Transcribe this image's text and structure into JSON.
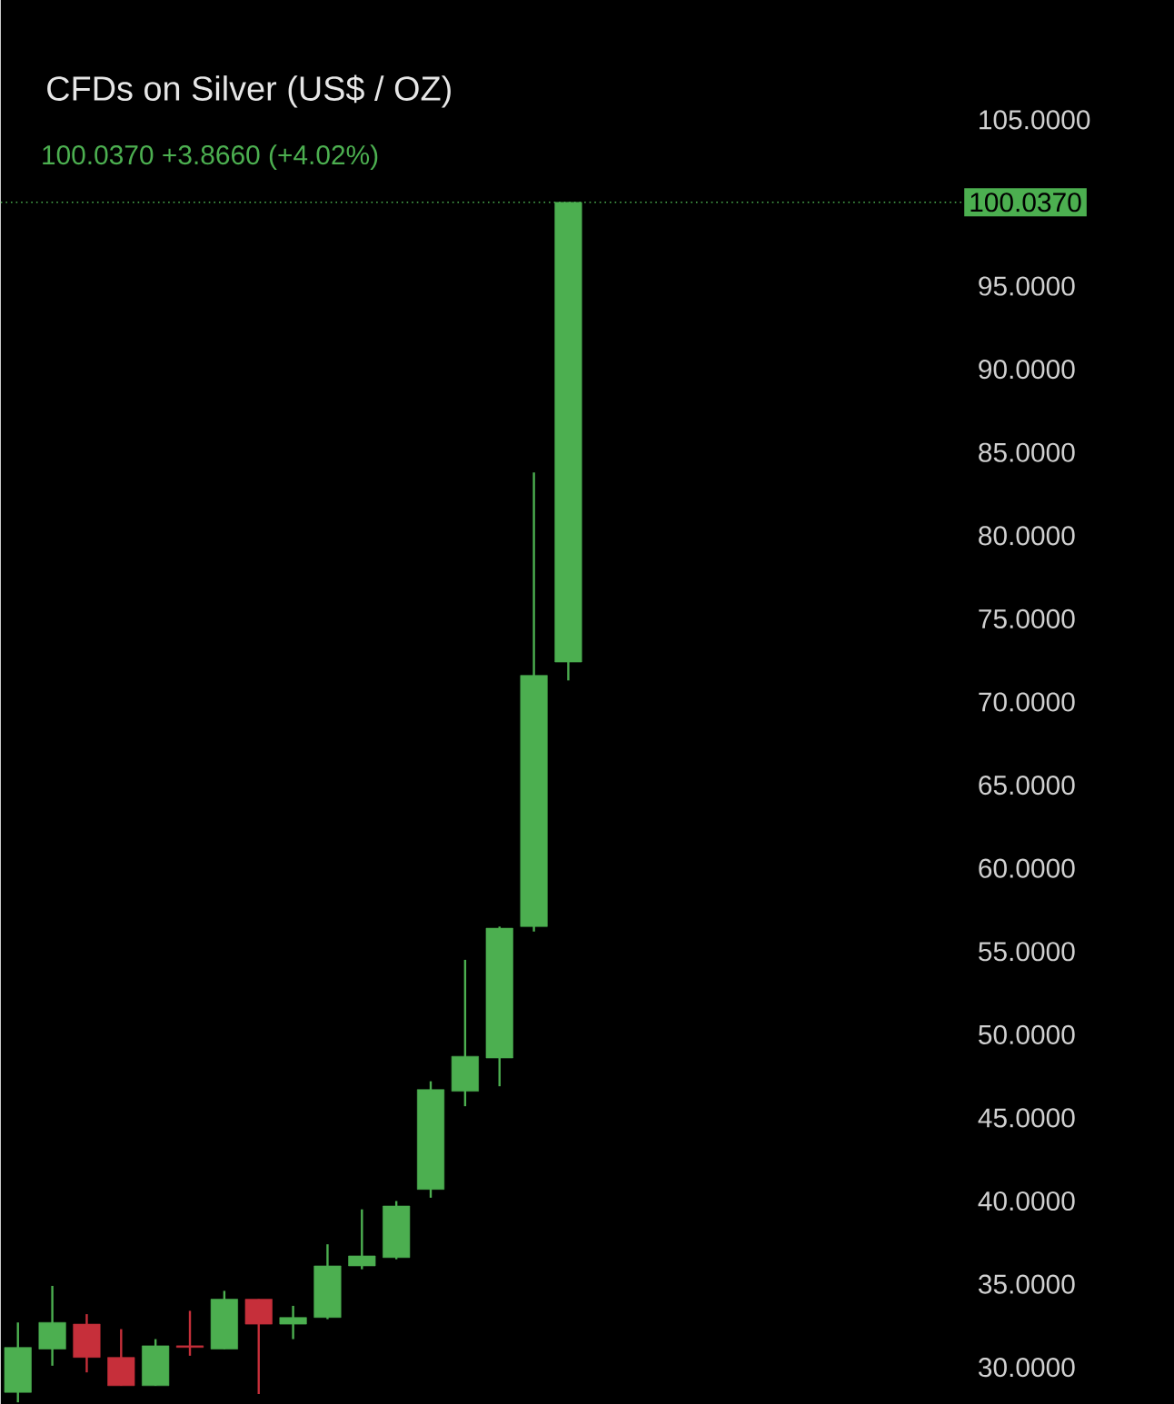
{
  "chart_data": {
    "type": "candlestick",
    "title": "CFDs on Silver (US$ / OZ)",
    "subtitle": "100.0370 +3.8660 (+4.02%)",
    "categories": [
      null,
      null,
      null,
      null,
      null,
      null,
      null,
      null,
      null,
      null,
      null,
      null,
      null,
      null,
      null,
      null,
      null,
      null,
      null,
      null,
      null,
      null,
      null,
      null,
      null,
      null,
      null,
      null
    ],
    "ohlc": [
      [
        28.5,
        32.7,
        27.9,
        31.2
      ],
      [
        31.1,
        34.9,
        30.1,
        32.7
      ],
      [
        32.6,
        33.2,
        29.7,
        30.6
      ],
      [
        30.6,
        32.3,
        28.9,
        28.9
      ],
      [
        28.9,
        31.7,
        28.9,
        31.3
      ],
      [
        31.3,
        33.4,
        30.7,
        31.2
      ],
      [
        31.1,
        34.6,
        31.1,
        34.1
      ],
      [
        34.1,
        34.1,
        28.4,
        32.6
      ],
      [
        32.6,
        33.7,
        31.7,
        33.0
      ],
      [
        33.0,
        37.4,
        32.9,
        36.1
      ],
      [
        36.1,
        39.5,
        35.9,
        36.7
      ],
      [
        36.6,
        40.0,
        36.5,
        39.7
      ],
      [
        40.7,
        47.2,
        40.2,
        46.7
      ],
      [
        46.6,
        54.5,
        45.7,
        48.7
      ],
      [
        48.6,
        56.5,
        46.9,
        56.4
      ],
      [
        56.5,
        83.8,
        56.2,
        71.6
      ],
      [
        72.4,
        100.037,
        71.3,
        100.037
      ],
      null,
      null,
      null,
      null,
      null,
      null,
      null,
      null,
      null,
      null,
      null
    ],
    "colors": [
      "#4caf50",
      "#4caf50",
      "#c62f3a",
      "#c62f3a",
      "#4caf50",
      "#c62f3a",
      "#4caf50",
      "#c62f3a",
      "#4caf50",
      "#4caf50",
      "#4caf50",
      "#4caf50",
      "#4caf50",
      "#4caf50",
      "#4caf50",
      "#4caf50",
      "#4caf50",
      null,
      null,
      null,
      null,
      null,
      null,
      null,
      null,
      null,
      null,
      null
    ],
    "ylim": [
      27.8,
      112.2
    ],
    "yticks": [
      {
        "value": 30,
        "label": "30.0000"
      },
      {
        "value": 35,
        "label": "35.0000"
      },
      {
        "value": 40,
        "label": "40.0000"
      },
      {
        "value": 45,
        "label": "45.0000"
      },
      {
        "value": 50,
        "label": "50.0000"
      },
      {
        "value": 55,
        "label": "55.0000"
      },
      {
        "value": 60,
        "label": "60.0000"
      },
      {
        "value": 65,
        "label": "65.0000"
      },
      {
        "value": 70,
        "label": "70.0000"
      },
      {
        "value": 75,
        "label": "75.0000"
      },
      {
        "value": 80,
        "label": "80.0000"
      },
      {
        "value": 85,
        "label": "85.0000"
      },
      {
        "value": 90,
        "label": "90.0000"
      },
      {
        "value": 95,
        "label": "95.0000"
      },
      {
        "value": 105,
        "label": "105.0000"
      }
    ],
    "ref_lines": [
      {
        "axis": "y",
        "value": 100.037,
        "label": "100.0370",
        "color": "#4caf50",
        "line_style": "dotted"
      }
    ],
    "tick_labels": "y",
    "grid": false
  }
}
